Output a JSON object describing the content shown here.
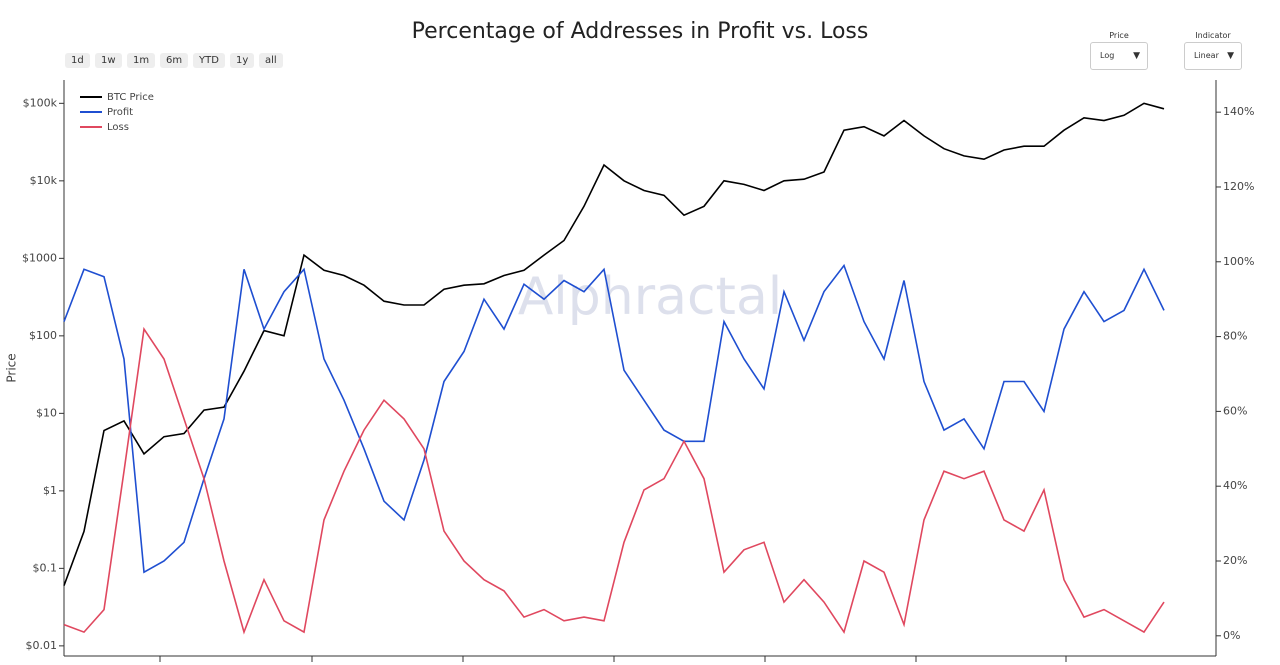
{
  "chart_data": {
    "type": "line",
    "title": "Percentage of Addresses in Profit vs. Loss",
    "y_label": "Price",
    "watermark": "Alphractal",
    "ylog": true,
    "ylim": [
      0.0074,
      200000
    ],
    "yticks": [
      {
        "value": 0.01,
        "label": "$0.01"
      },
      {
        "value": 0.1,
        "label": "$0.1"
      },
      {
        "value": 1,
        "label": "$1"
      },
      {
        "value": 10,
        "label": "$10"
      },
      {
        "value": 100,
        "label": "$100"
      },
      {
        "value": 1000,
        "label": "$1000"
      },
      {
        "value": 10000,
        "label": "$10k"
      },
      {
        "value": 100000,
        "label": "$100k"
      }
    ],
    "y2lim": [
      -5.4,
      148.6
    ],
    "y2ticks": [
      {
        "value": 0,
        "label": "0%"
      },
      {
        "value": 20,
        "label": "20%"
      },
      {
        "value": 40,
        "label": "40%"
      },
      {
        "value": 60,
        "label": "60%"
      },
      {
        "value": 80,
        "label": "80%"
      },
      {
        "value": 100,
        "label": "100%"
      },
      {
        "value": 120,
        "label": "120%"
      },
      {
        "value": 140,
        "label": "140%"
      }
    ],
    "series": [
      {
        "name": "BTC Price",
        "color": "#000000",
        "values": [
          0.06,
          0.3,
          6,
          8,
          3,
          5,
          5.5,
          11,
          12,
          35,
          117,
          100,
          1100,
          700,
          600,
          450,
          280,
          250,
          250,
          400,
          450,
          470,
          600,
          700,
          1100,
          1700,
          4700,
          16000,
          10000,
          7500,
          6500,
          3600,
          4700,
          10000,
          9000,
          7500,
          10000,
          10500,
          13000,
          45000,
          50000,
          38000,
          60000,
          38000,
          26000,
          21000,
          19000,
          25000,
          28000,
          28000,
          45000,
          65000,
          60000,
          70000,
          100000,
          85000
        ]
      },
      {
        "name": "Profit",
        "color": "#1f4fd1",
        "axis": "y2",
        "values": [
          84,
          98,
          96,
          74,
          17,
          20,
          25,
          42,
          58,
          98,
          82,
          92,
          98,
          74,
          63,
          50,
          36,
          31,
          47,
          68,
          76,
          90,
          82,
          94,
          90,
          95,
          92,
          98,
          71,
          63,
          55,
          52,
          52,
          84,
          74,
          66,
          92,
          79,
          92,
          99,
          84,
          74,
          95,
          68,
          55,
          58,
          50,
          68,
          68,
          60,
          82,
          92,
          84,
          87,
          98,
          87
        ]
      },
      {
        "name": "Loss",
        "color": "#e0485f",
        "axis": "y2",
        "values": [
          3,
          1,
          7,
          44,
          82,
          74,
          58,
          42,
          20,
          1,
          15,
          4,
          1,
          31,
          44,
          55,
          63,
          58,
          50,
          28,
          20,
          15,
          12,
          5,
          7,
          4,
          5,
          4,
          25,
          39,
          42,
          52,
          42,
          17,
          23,
          25,
          9,
          15,
          9,
          1,
          20,
          17,
          3,
          31,
          44,
          42,
          44,
          31,
          28,
          39,
          15,
          5,
          7,
          4,
          1,
          9
        ]
      }
    ]
  },
  "controls": {
    "ranges": [
      "1d",
      "1w",
      "1m",
      "6m",
      "YTD",
      "1y",
      "all"
    ],
    "price_label": "Price",
    "price_value": "Log",
    "indicator_label": "Indicator",
    "indicator_value": "Linear"
  }
}
